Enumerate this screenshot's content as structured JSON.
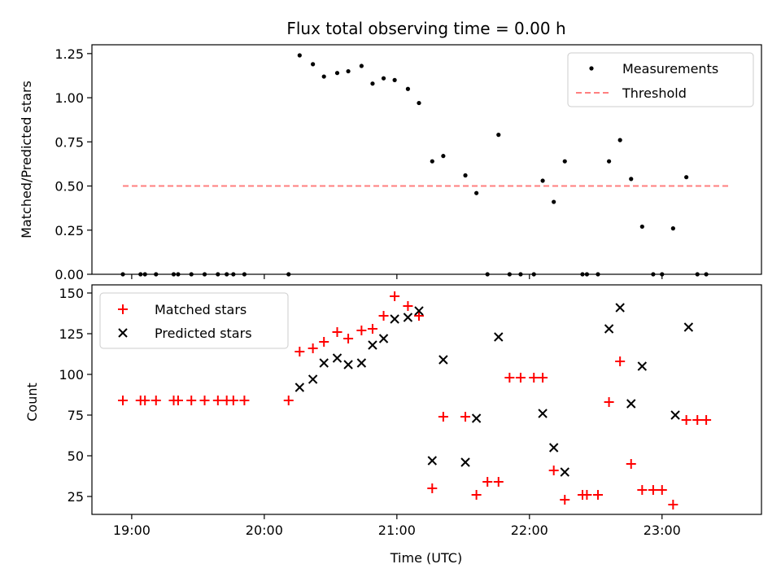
{
  "colors": {
    "measurements": "#000000",
    "threshold": "#ff7f7f",
    "matched": "#ff0000",
    "predicted": "#000000"
  },
  "chart_data": [
    {
      "type": "scatter",
      "title": "Flux total observing time = 0.00 h",
      "xlabel": "",
      "ylabel": "Matched/Predicted stars",
      "ylim": [
        0,
        1.3
      ],
      "xlim_hours": [
        18.7,
        23.75
      ],
      "yticks": [
        "0.00",
        "0.25",
        "0.50",
        "0.75",
        "1.00",
        "1.25"
      ],
      "legend_position": "top-right",
      "series": [
        {
          "name": "Measurements",
          "marker": "dot",
          "x": [
            "18:56",
            "19:04",
            "19:06",
            "19:11",
            "19:19",
            "19:21",
            "19:27",
            "19:33",
            "19:39",
            "19:43",
            "19:46",
            "19:51",
            "20:11",
            "20:16",
            "20:22",
            "20:27",
            "20:33",
            "20:38",
            "20:44",
            "20:49",
            "20:54",
            "20:59",
            "21:05",
            "21:10",
            "21:16",
            "21:21",
            "21:31",
            "21:36",
            "21:41",
            "21:46",
            "21:51",
            "21:56",
            "22:02",
            "22:06",
            "22:11",
            "22:16",
            "22:24",
            "22:26",
            "22:31",
            "22:36",
            "22:41",
            "22:46",
            "22:51",
            "22:56",
            "23:00",
            "23:05",
            "23:11",
            "23:16",
            "23:20"
          ],
          "y": [
            0.0,
            0.0,
            0.0,
            0.0,
            0.0,
            0.0,
            0.0,
            0.0,
            0.0,
            0.0,
            0.0,
            0.0,
            0.0,
            1.24,
            1.19,
            1.12,
            1.14,
            1.15,
            1.18,
            1.08,
            1.11,
            1.1,
            1.05,
            0.97,
            0.64,
            0.67,
            0.56,
            0.46,
            0.0,
            0.79,
            0.0,
            0.0,
            0.0,
            0.53,
            0.41,
            0.64,
            0.0,
            0.0,
            0.0,
            0.64,
            0.76,
            0.54,
            0.27,
            0.0,
            0.0,
            0.26,
            0.55,
            0.0,
            0.0
          ]
        },
        {
          "name": "Threshold",
          "marker": "dashed-line",
          "x": [
            "18:56",
            "23:31"
          ],
          "y": [
            0.5,
            0.5
          ]
        }
      ]
    },
    {
      "type": "scatter",
      "title": "",
      "xlabel": "Time (UTC)",
      "ylabel": "Count",
      "ylim": [
        14,
        155
      ],
      "xlim_hours": [
        18.7,
        23.75
      ],
      "xticks": [
        "19:00",
        "20:00",
        "21:00",
        "22:00",
        "23:00"
      ],
      "yticks": [
        "25",
        "50",
        "75",
        "100",
        "125",
        "150"
      ],
      "legend_position": "top-left",
      "series": [
        {
          "name": "Matched stars",
          "marker": "plus",
          "x": [
            "18:56",
            "19:04",
            "19:06",
            "19:11",
            "19:19",
            "19:21",
            "19:27",
            "19:33",
            "19:39",
            "19:43",
            "19:46",
            "19:51",
            "20:11",
            "20:16",
            "20:22",
            "20:27",
            "20:33",
            "20:38",
            "20:44",
            "20:49",
            "20:54",
            "20:59",
            "21:05",
            "21:10",
            "21:16",
            "21:21",
            "21:31",
            "21:36",
            "21:41",
            "21:46",
            "21:51",
            "21:56",
            "22:02",
            "22:06",
            "22:11",
            "22:16",
            "22:24",
            "22:26",
            "22:31",
            "22:36",
            "22:41",
            "22:46",
            "22:51",
            "22:56",
            "23:00",
            "23:05",
            "23:11",
            "23:16",
            "23:20"
          ],
          "y": [
            84,
            84,
            84,
            84,
            84,
            84,
            84,
            84,
            84,
            84,
            84,
            84,
            84,
            114,
            116,
            120,
            126,
            122,
            127,
            128,
            136,
            148,
            142,
            136,
            30,
            74,
            74,
            26,
            34,
            34,
            98,
            98,
            98,
            98,
            41,
            23,
            26,
            26,
            26,
            83,
            108,
            45,
            29,
            29,
            29,
            20,
            72,
            72,
            72
          ]
        },
        {
          "name": "Predicted stars",
          "marker": "x",
          "x": [
            "20:16",
            "20:22",
            "20:27",
            "20:33",
            "20:38",
            "20:44",
            "20:49",
            "20:54",
            "20:59",
            "21:05",
            "21:10",
            "21:16",
            "21:21",
            "21:31",
            "21:36",
            "21:46",
            "22:06",
            "22:11",
            "22:16",
            "22:36",
            "22:41",
            "22:46",
            "22:51",
            "23:06",
            "23:12"
          ],
          "y": [
            92,
            97,
            107,
            110,
            106,
            107,
            118,
            122,
            134,
            135,
            139,
            47,
            109,
            46,
            73,
            123,
            76,
            55,
            40,
            128,
            141,
            82,
            105,
            75,
            129
          ]
        }
      ]
    }
  ]
}
